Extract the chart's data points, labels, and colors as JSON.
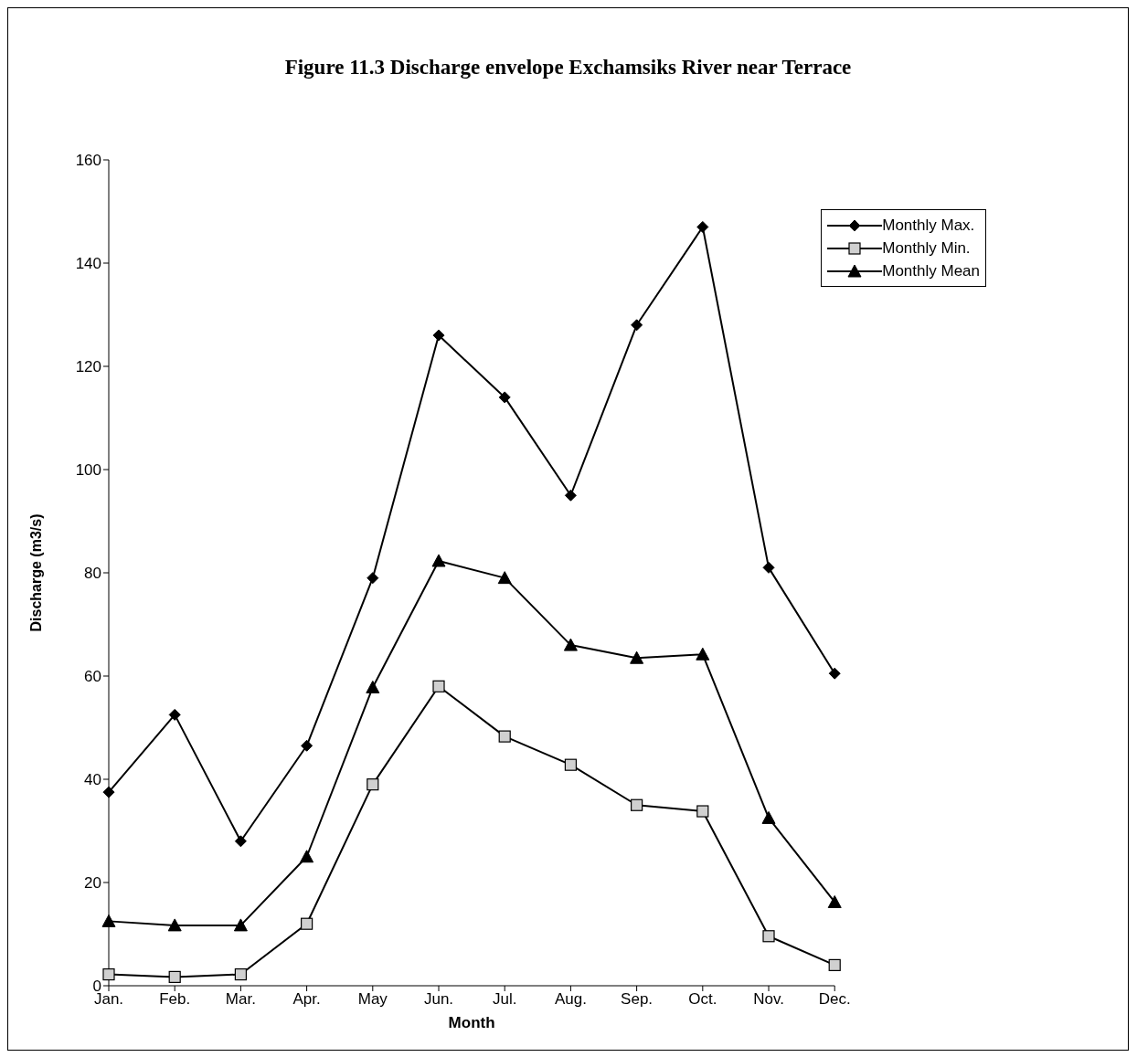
{
  "chart_data": {
    "type": "line",
    "title": "Figure 11.3  Discharge envelope Exchamsiks River near Terrace",
    "xlabel": "Month",
    "ylabel": "Discharge (m3/s)",
    "categories": [
      "Jan.",
      "Feb.",
      "Mar.",
      "Apr.",
      "May",
      "Jun.",
      "Jul.",
      "Aug.",
      "Sep.",
      "Oct.",
      "Nov.",
      "Dec."
    ],
    "series": [
      {
        "name": "Monthly Max.",
        "color": "#000000",
        "marker": "diamond",
        "values": [
          37.5,
          52.5,
          28,
          46.5,
          79,
          126,
          114,
          95,
          128,
          147,
          81,
          60.5
        ]
      },
      {
        "name": "Monthly Min.",
        "color": "#000000",
        "marker": "square",
        "values": [
          2.2,
          1.7,
          2.2,
          12,
          39,
          58,
          48.3,
          42.8,
          35,
          33.8,
          9.6,
          4
        ]
      },
      {
        "name": "Monthly Mean",
        "color": "#000000",
        "marker": "triangle",
        "values": [
          12.5,
          11.7,
          11.7,
          25,
          57.8,
          82.3,
          79,
          66,
          63.5,
          64.2,
          32.5,
          16.2
        ]
      }
    ],
    "ylim": [
      0,
      160
    ],
    "yticks": [
      0,
      20,
      40,
      60,
      80,
      100,
      120,
      140,
      160
    ],
    "grid": false,
    "legend": "top right",
    "line_style": "solid"
  }
}
